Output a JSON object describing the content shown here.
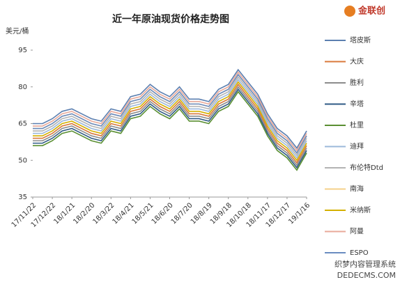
{
  "chart_data": {
    "type": "line",
    "title": "近一年原油现货价格走势图",
    "y_label": "美元/桶",
    "logo": "金联创",
    "watermark": [
      "织梦内容管理系统",
      "DEDECMS.COM"
    ],
    "categories": [
      "17/11/22",
      null,
      "17/12/22",
      null,
      "18/1/21",
      null,
      "18/2/20",
      null,
      "18/3/22",
      null,
      "18/4/21",
      null,
      "18/5/21",
      null,
      "18/6/20",
      null,
      "18/7/20",
      null,
      "18/8/19",
      null,
      "18/9/18",
      null,
      "18/10/18",
      null,
      "18/11/17",
      null,
      "18/12/17",
      null,
      "19/1/16"
    ],
    "ylim": [
      35,
      95
    ],
    "yticks": [
      35,
      50,
      65,
      80,
      95
    ],
    "series": [
      {
        "name": "塔皮斯",
        "color": "#5b7fb0",
        "values": [
          65,
          65,
          67,
          70,
          71,
          69,
          67,
          66,
          71,
          70,
          76,
          77,
          81,
          78,
          76,
          80,
          75,
          75,
          74,
          79,
          81,
          87,
          82,
          77,
          69,
          63,
          60,
          55,
          62
        ]
      },
      {
        "name": "大庆",
        "color": "#d9783a",
        "values": [
          59,
          59,
          61,
          64,
          65,
          63,
          61,
          60,
          65,
          64,
          70,
          71,
          75,
          72,
          70,
          74,
          69,
          69,
          68,
          73,
          75,
          81,
          76,
          71,
          63,
          57,
          54,
          49,
          56
        ]
      },
      {
        "name": "胜利",
        "color": "#8c8c8c",
        "values": [
          58,
          58,
          60,
          63,
          64,
          62,
          60,
          59,
          64,
          63,
          69,
          70,
          74,
          71,
          69,
          73,
          68,
          68,
          67,
          72,
          74,
          80,
          75,
          70,
          62,
          56,
          53,
          48,
          55
        ]
      },
      {
        "name": "辛塔",
        "color": "#2f5a85",
        "values": [
          57,
          57,
          59,
          62,
          63,
          61,
          59,
          58,
          63,
          62,
          68,
          69,
          73,
          70,
          68,
          72,
          67,
          67,
          66,
          71,
          73,
          79,
          74,
          69,
          61,
          55,
          52,
          47,
          54
        ]
      },
      {
        "name": "杜里",
        "color": "#5a8f32",
        "values": [
          56,
          56,
          58,
          61,
          62,
          60,
          58,
          57,
          62,
          61,
          67,
          68,
          72,
          69,
          67,
          71,
          66,
          66,
          65,
          70,
          72,
          78,
          73,
          68,
          60,
          54,
          51,
          46,
          53
        ]
      },
      {
        "name": "迪拜",
        "color": "#9bb8da",
        "values": [
          61,
          61,
          63,
          66,
          67,
          65,
          63,
          62,
          67,
          66,
          72,
          73,
          77,
          74,
          72,
          76,
          71,
          71,
          70,
          75,
          77,
          83,
          78,
          73,
          65,
          59,
          56,
          51,
          58
        ]
      },
      {
        "name": "布伦特Dtd",
        "color": "#b3b3b3",
        "values": [
          62,
          62,
          64,
          67,
          68,
          66,
          64,
          63,
          68,
          67,
          73,
          74,
          78,
          75,
          73,
          77,
          72,
          72,
          71,
          76,
          78,
          84,
          79,
          74,
          66,
          60,
          57,
          52,
          59
        ]
      },
      {
        "name": "南海",
        "color": "#f5d08a",
        "values": [
          63,
          63,
          65,
          68,
          69,
          67,
          65,
          64,
          69,
          68,
          74,
          75,
          79,
          76,
          74,
          78,
          73,
          73,
          72,
          77,
          79,
          85,
          80,
          75,
          67,
          61,
          58,
          53,
          60
        ]
      },
      {
        "name": "米纳斯",
        "color": "#d4b000",
        "values": [
          60,
          60,
          62,
          65,
          66,
          64,
          62,
          61,
          66,
          65,
          71,
          72,
          76,
          73,
          71,
          75,
          70,
          70,
          69,
          74,
          76,
          82,
          77,
          72,
          64,
          58,
          55,
          50,
          57
        ]
      },
      {
        "name": "阿曼",
        "color": "#e8a99a",
        "values": [
          64,
          64,
          66,
          69,
          70,
          68,
          66,
          65,
          70,
          69,
          75,
          76,
          80,
          77,
          75,
          79,
          74,
          74,
          73,
          78,
          80,
          86,
          81,
          76,
          68,
          62,
          59,
          54,
          61
        ]
      },
      {
        "name": "ESPO",
        "color": "#6a8cc0",
        "values": [
          63,
          63,
          65,
          68,
          69,
          67,
          65,
          64,
          69,
          68,
          74,
          75,
          79,
          76,
          74,
          78,
          73,
          73,
          72,
          77,
          79,
          85,
          80,
          75,
          67,
          61,
          58,
          53,
          60
        ]
      }
    ]
  }
}
